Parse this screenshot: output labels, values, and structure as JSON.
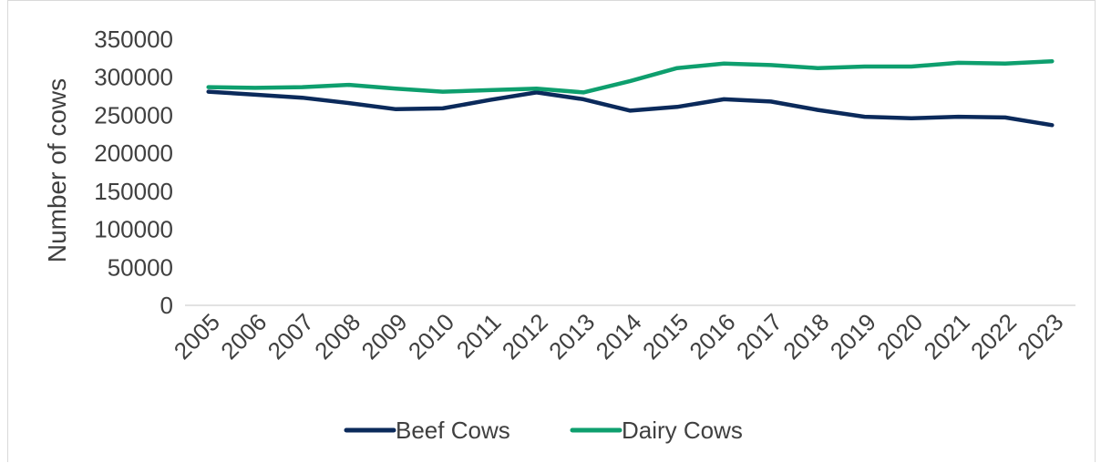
{
  "chart_data": {
    "type": "line",
    "title": "",
    "xlabel": "",
    "ylabel": "Number of cows",
    "x": [
      "2005",
      "2006",
      "2007",
      "2008",
      "2009",
      "2010",
      "2011",
      "2012",
      "2013",
      "2014",
      "2015",
      "2016",
      "2017",
      "2018",
      "2019",
      "2020",
      "2021",
      "2022",
      "2023"
    ],
    "ylim": [
      0,
      350000
    ],
    "yticks": [
      "0",
      "50000",
      "100000",
      "150000",
      "200000",
      "250000",
      "300000",
      "350000"
    ],
    "grid": false,
    "legend_position": "bottom",
    "series": [
      {
        "name": "Beef Cows",
        "color": "#0b2a5b",
        "values": [
          281000,
          277000,
          273000,
          266000,
          258000,
          259000,
          270000,
          280000,
          271000,
          256000,
          261000,
          271000,
          268000,
          257000,
          248000,
          246000,
          248000,
          247000,
          237000
        ]
      },
      {
        "name": "Dairy Cows",
        "color": "#0e9f6e",
        "values": [
          287000,
          286000,
          287000,
          290000,
          285000,
          281000,
          283000,
          285000,
          280000,
          295000,
          312000,
          318000,
          316000,
          312000,
          314000,
          314000,
          319000,
          318000,
          321000
        ]
      }
    ]
  }
}
